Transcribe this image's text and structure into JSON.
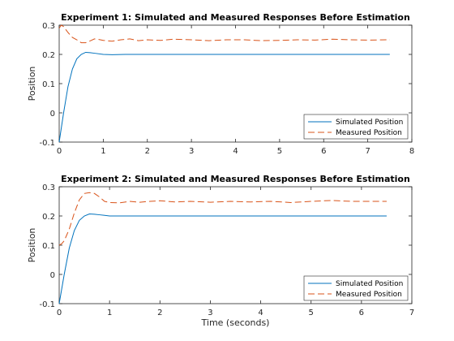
{
  "chart_data": [
    {
      "type": "line",
      "title": "Experiment 1: Simulated and Measured Responses Before Estimation",
      "xlabel": "",
      "ylabel": "Position",
      "xlim": [
        0,
        8
      ],
      "ylim": [
        -0.1,
        0.3
      ],
      "xticks": [
        "0",
        "1",
        "2",
        "3",
        "4",
        "5",
        "6",
        "7",
        "8"
      ],
      "yticks": [
        "-0.1",
        "0",
        "0.1",
        "0.2",
        "0.3"
      ],
      "legend": "bottom-right",
      "grid": false,
      "series": [
        {
          "name": "Simulated Position",
          "color": "#0072BD",
          "style": "solid",
          "x": [
            0,
            0.1,
            0.2,
            0.3,
            0.4,
            0.5,
            0.6,
            0.7,
            0.8,
            1.0,
            1.2,
            1.5,
            2,
            3,
            4,
            5,
            6,
            7,
            7.5
          ],
          "y": [
            -0.1,
            0.0,
            0.09,
            0.15,
            0.185,
            0.2,
            0.207,
            0.206,
            0.204,
            0.2,
            0.199,
            0.2,
            0.2,
            0.2,
            0.2,
            0.2,
            0.2,
            0.2,
            0.2
          ]
        },
        {
          "name": "Measured Position",
          "color": "#D95319",
          "style": "dashed",
          "x": [
            0,
            0.05,
            0.1,
            0.2,
            0.3,
            0.4,
            0.5,
            0.6,
            0.7,
            0.8,
            0.9,
            1.0,
            1.2,
            1.4,
            1.6,
            1.8,
            2.0,
            2.3,
            2.6,
            3.0,
            3.4,
            3.8,
            4.2,
            4.6,
            5.0,
            5.4,
            5.8,
            6.2,
            6.6,
            7.0,
            7.5
          ],
          "y": [
            0.29,
            0.3,
            0.295,
            0.275,
            0.258,
            0.25,
            0.24,
            0.24,
            0.246,
            0.253,
            0.251,
            0.248,
            0.245,
            0.25,
            0.253,
            0.247,
            0.25,
            0.248,
            0.252,
            0.25,
            0.247,
            0.25,
            0.25,
            0.247,
            0.248,
            0.25,
            0.249,
            0.252,
            0.25,
            0.249,
            0.25
          ]
        }
      ]
    },
    {
      "type": "line",
      "title": "Experiment 2: Simulated and Measured Responses Before Estimation",
      "xlabel": "Time (seconds)",
      "ylabel": "Position",
      "xlim": [
        0,
        7
      ],
      "ylim": [
        -0.1,
        0.3
      ],
      "xticks": [
        "0",
        "1",
        "2",
        "3",
        "4",
        "5",
        "6",
        "7"
      ],
      "yticks": [
        "-0.1",
        "0",
        "0.1",
        "0.2",
        "0.3"
      ],
      "legend": "bottom-right",
      "grid": false,
      "series": [
        {
          "name": "Simulated Position",
          "color": "#0072BD",
          "style": "solid",
          "x": [
            0,
            0.1,
            0.2,
            0.3,
            0.4,
            0.5,
            0.6,
            0.7,
            0.8,
            1.0,
            1.2,
            1.5,
            2,
            3,
            4,
            5,
            6,
            6.5
          ],
          "y": [
            -0.1,
            0.0,
            0.09,
            0.15,
            0.185,
            0.2,
            0.207,
            0.206,
            0.204,
            0.2,
            0.2,
            0.2,
            0.2,
            0.2,
            0.2,
            0.2,
            0.2,
            0.2
          ]
        },
        {
          "name": "Measured Position",
          "color": "#D95319",
          "style": "dashed",
          "x": [
            0,
            0.05,
            0.1,
            0.2,
            0.3,
            0.4,
            0.5,
            0.6,
            0.7,
            0.8,
            0.9,
            1.0,
            1.2,
            1.4,
            1.6,
            1.8,
            2.0,
            2.3,
            2.6,
            3.0,
            3.4,
            3.8,
            4.2,
            4.6,
            5.0,
            5.4,
            5.8,
            6.2,
            6.5
          ],
          "y": [
            0.1,
            0.105,
            0.115,
            0.155,
            0.21,
            0.255,
            0.277,
            0.28,
            0.277,
            0.265,
            0.25,
            0.246,
            0.245,
            0.25,
            0.247,
            0.25,
            0.252,
            0.248,
            0.25,
            0.247,
            0.25,
            0.248,
            0.25,
            0.246,
            0.25,
            0.253,
            0.25,
            0.25,
            0.25
          ]
        }
      ]
    }
  ]
}
